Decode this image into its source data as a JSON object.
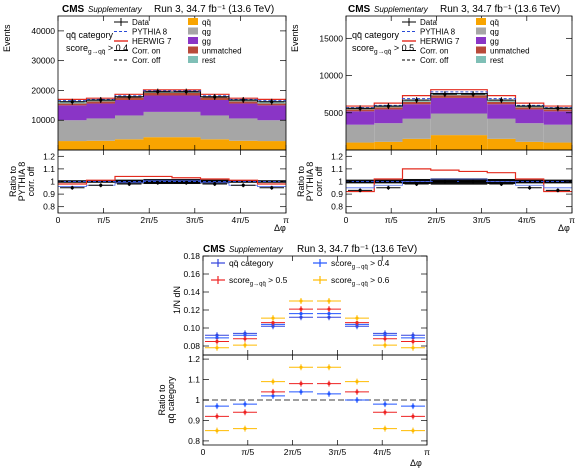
{
  "charts": [
    {
      "id": "top-left",
      "cms_label": "CMS",
      "supp_label": "Supplementary",
      "run_label": "Run 3, 34.7 fb⁻¹ (13.6 TeV)",
      "category_label": "qq̄ category",
      "score_label": "score_{g→qq̄} > 0.4",
      "main": {
        "ylabel": "Events",
        "ylim": [
          0,
          45000
        ],
        "yticks": [
          10000,
          20000,
          30000,
          40000
        ],
        "stack_order": [
          "qq",
          "qg",
          "gg",
          "unmatched",
          "rest"
        ],
        "stack": {
          "rest": [
            400,
            400,
            400,
            400,
            400,
            400,
            400,
            400
          ],
          "unmatched": [
            600,
            700,
            800,
            900,
            900,
            800,
            700,
            600
          ],
          "gg": [
            5000,
            5000,
            5200,
            5500,
            5500,
            5200,
            5000,
            5000
          ],
          "qg": [
            7000,
            7500,
            8000,
            8500,
            8500,
            8000,
            7500,
            7000
          ],
          "qq": [
            3000,
            3100,
            3600,
            4300,
            4300,
            3600,
            3100,
            3000
          ]
        },
        "data": [
          16200,
          16800,
          17800,
          19600,
          19600,
          17800,
          16800,
          16200
        ],
        "pythia": [
          16600,
          17000,
          18200,
          19900,
          19900,
          18200,
          17000,
          16600
        ],
        "herwig": [
          17000,
          17400,
          18700,
          20200,
          20200,
          18700,
          17400,
          17000
        ],
        "corr_on": [
          16200,
          16700,
          17900,
          19500,
          19500,
          17900,
          16700,
          16200
        ]
      },
      "ratio": {
        "ylabel": [
          "Ratio to",
          "PYTHIA 8",
          "corr. off"
        ],
        "ylim": [
          0.75,
          1.25
        ],
        "yticks": [
          0.8,
          0.9,
          1.0,
          1.1,
          1.2
        ],
        "data": [
          0.95,
          0.97,
          0.98,
          0.99,
          0.99,
          0.98,
          0.97,
          0.95
        ],
        "pythia": [
          1.0,
          1.0,
          1.0,
          1.0,
          1.0,
          1.0,
          1.0,
          1.0
        ],
        "herwig": [
          0.98,
          1.01,
          1.04,
          1.04,
          1.03,
          1.02,
          1.01,
          0.98
        ],
        "corr_on": [
          0.96,
          0.97,
          0.99,
          1.01,
          1.01,
          0.99,
          0.97,
          0.96
        ],
        "syst": [
          0.02,
          0.02,
          0.03,
          0.04,
          0.04,
          0.03,
          0.02,
          0.02
        ]
      }
    },
    {
      "id": "top-right",
      "cms_label": "CMS",
      "supp_label": "Supplementary",
      "run_label": "Run 3, 34.7 fb⁻¹ (13.6 TeV)",
      "category_label": "qq̄ category",
      "score_label": "score_{g→qq̄} > 0.5",
      "main": {
        "ylabel": "Events",
        "ylim": [
          0,
          18000
        ],
        "yticks": [
          5000,
          10000,
          15000
        ],
        "stack_order": [
          "qq",
          "qg",
          "gg",
          "unmatched",
          "rest"
        ],
        "stack": {
          "rest": [
            150,
            150,
            150,
            150,
            150,
            150,
            150,
            150
          ],
          "unmatched": [
            250,
            280,
            320,
            350,
            350,
            320,
            280,
            250
          ],
          "gg": [
            1800,
            1850,
            1950,
            2100,
            2100,
            1950,
            1850,
            1800
          ],
          "qg": [
            2400,
            2500,
            2700,
            2900,
            2900,
            2700,
            2500,
            2400
          ],
          "qq": [
            1000,
            1100,
            1500,
            2000,
            2000,
            1500,
            1100,
            1000
          ]
        },
        "data": [
          5600,
          5900,
          6700,
          7500,
          7500,
          6700,
          5900,
          5600
        ],
        "pythia": [
          5700,
          6000,
          6900,
          7800,
          7800,
          6900,
          6000,
          5700
        ],
        "herwig": [
          5900,
          6300,
          7300,
          8100,
          8100,
          7300,
          6300,
          5900
        ],
        "corr_on": [
          5600,
          5900,
          6700,
          7600,
          7600,
          6700,
          5900,
          5600
        ]
      },
      "ratio": {
        "ylabel": [
          "Ratio to",
          "PYTHIA 8",
          "corr. off"
        ],
        "ylim": [
          0.75,
          1.25
        ],
        "yticks": [
          0.8,
          0.9,
          1.0,
          1.1,
          1.2
        ],
        "data": [
          0.93,
          0.95,
          0.98,
          1.0,
          1.0,
          0.98,
          0.95,
          0.93
        ],
        "pythia": [
          1.0,
          1.0,
          1.0,
          1.0,
          1.0,
          1.0,
          1.0,
          1.0
        ],
        "herwig": [
          0.92,
          1.02,
          1.1,
          1.09,
          1.08,
          1.07,
          1.02,
          0.92
        ],
        "corr_on": [
          0.95,
          0.97,
          1.0,
          1.02,
          1.02,
          1.0,
          0.97,
          0.95
        ],
        "syst": [
          0.03,
          0.03,
          0.04,
          0.05,
          0.05,
          0.04,
          0.03,
          0.03
        ]
      }
    },
    {
      "id": "bottom",
      "cms_label": "CMS",
      "supp_label": "Supplementary",
      "run_label": "Run 3, 34.7 fb⁻¹ (13.6 TeV)",
      "main": {
        "ylabel": "1/N dN",
        "ylim": [
          0.07,
          0.18
        ],
        "yticks": [
          0.08,
          0.1,
          0.12,
          0.14,
          0.16,
          0.18
        ],
        "series": [
          {
            "name": "qq̄ category",
            "color": "#3344dd",
            "values": [
              0.092,
              0.094,
              0.102,
              0.112,
              0.112,
              0.102,
              0.094,
              0.092
            ]
          },
          {
            "name": "score_{g→qq̄} > 0.4",
            "color": "#2255ff",
            "values": [
              0.089,
              0.092,
              0.104,
              0.116,
              0.116,
              0.104,
              0.092,
              0.089
            ]
          },
          {
            "name": "score_{g→qq̄} > 0.5",
            "color": "#ee2222",
            "values": [
              0.085,
              0.088,
              0.106,
              0.121,
              0.121,
              0.106,
              0.088,
              0.085
            ]
          },
          {
            "name": "score_{g→qq̄} > 0.6",
            "color": "#ffbb00",
            "values": [
              0.078,
              0.081,
              0.111,
              0.13,
              0.13,
              0.111,
              0.081,
              0.078
            ]
          }
        ]
      },
      "ratio": {
        "ylabel": [
          "Ratio to",
          "qq̄ category"
        ],
        "ylim": [
          0.78,
          1.22
        ],
        "yticks": [
          0.8,
          0.9,
          1.0,
          1.1,
          1.2
        ],
        "series": [
          {
            "color": "#2255ff",
            "values": [
              0.97,
              0.98,
              1.02,
              1.04,
              1.03,
              1.0,
              0.98,
              0.97
            ]
          },
          {
            "color": "#ee2222",
            "values": [
              0.92,
              0.94,
              1.04,
              1.08,
              1.08,
              1.04,
              0.94,
              0.92
            ]
          },
          {
            "color": "#ffbb00",
            "values": [
              0.85,
              0.86,
              1.09,
              1.16,
              1.16,
              1.09,
              0.86,
              0.85
            ]
          }
        ]
      }
    }
  ],
  "xaxis": {
    "label": "Δφ",
    "ticks": [
      "0",
      "π/5",
      "2π/5",
      "3π/5",
      "4π/5",
      "π"
    ]
  },
  "legend": {
    "data": "Data",
    "pythia": "PYTHIA 8",
    "herwig": "HERWIG 7",
    "corr_on": "Corr. on",
    "corr_off": "Corr. off",
    "qq": "qq̄",
    "qg": "qg",
    "gg": "gg",
    "unmatched": "unmatched",
    "rest": "rest"
  },
  "colors": {
    "qq": "#f8a400",
    "qg": "#a6a6a6",
    "gg": "#8a35c6",
    "unmatched": "#b84a3a",
    "rest": "#7fbfb6",
    "pythia": "#2a4bd7",
    "herwig": "#e32b1e",
    "data": "#000000",
    "syst": "#000000"
  }
}
